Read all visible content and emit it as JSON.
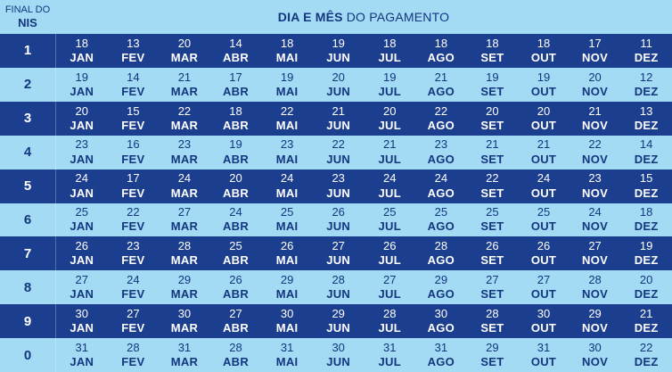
{
  "header": {
    "nis_label_line1": "FINAL DO",
    "nis_label_line2": "NIS",
    "title_bold": "DIA E MÊS",
    "title_regular": " DO PAGAMENTO"
  },
  "colors": {
    "light_blue": "#A2DBF3",
    "dark_blue": "#1C3E8F",
    "text_on_light": "#14367F",
    "text_on_dark": "#FFFFFF"
  },
  "months": [
    "JAN",
    "FEV",
    "MAR",
    "ABR",
    "MAI",
    "JUN",
    "JUL",
    "AGO",
    "SET",
    "OUT",
    "NOV",
    "DEZ"
  ],
  "rows": [
    {
      "nis": "1",
      "days": [
        18,
        13,
        20,
        14,
        18,
        19,
        18,
        18,
        18,
        18,
        17,
        11
      ]
    },
    {
      "nis": "2",
      "days": [
        19,
        14,
        21,
        17,
        19,
        20,
        19,
        21,
        19,
        19,
        20,
        12
      ]
    },
    {
      "nis": "3",
      "days": [
        20,
        15,
        22,
        18,
        22,
        21,
        20,
        22,
        20,
        20,
        21,
        13
      ]
    },
    {
      "nis": "4",
      "days": [
        23,
        16,
        23,
        19,
        23,
        22,
        21,
        23,
        21,
        21,
        22,
        14
      ]
    },
    {
      "nis": "5",
      "days": [
        24,
        17,
        24,
        20,
        24,
        23,
        24,
        24,
        22,
        24,
        23,
        15
      ]
    },
    {
      "nis": "6",
      "days": [
        25,
        22,
        27,
        24,
        25,
        26,
        25,
        25,
        25,
        25,
        24,
        18
      ]
    },
    {
      "nis": "7",
      "days": [
        26,
        23,
        28,
        25,
        26,
        27,
        26,
        28,
        26,
        26,
        27,
        19
      ]
    },
    {
      "nis": "8",
      "days": [
        27,
        24,
        29,
        26,
        29,
        28,
        27,
        29,
        27,
        27,
        28,
        20
      ]
    },
    {
      "nis": "9",
      "days": [
        30,
        27,
        30,
        27,
        30,
        29,
        28,
        30,
        28,
        30,
        29,
        21
      ]
    },
    {
      "nis": "0",
      "days": [
        31,
        28,
        31,
        28,
        31,
        30,
        31,
        31,
        29,
        31,
        30,
        22
      ]
    }
  ],
  "chart_data": {
    "type": "table",
    "title": "DIA E MÊS DO PAGAMENTO",
    "columns": [
      "FINAL DO NIS",
      "JAN",
      "FEV",
      "MAR",
      "ABR",
      "MAI",
      "JUN",
      "JUL",
      "AGO",
      "SET",
      "OUT",
      "NOV",
      "DEZ"
    ],
    "rows": [
      [
        "1",
        18,
        13,
        20,
        14,
        18,
        19,
        18,
        18,
        18,
        18,
        17,
        11
      ],
      [
        "2",
        19,
        14,
        21,
        17,
        19,
        20,
        19,
        21,
        19,
        19,
        20,
        12
      ],
      [
        "3",
        20,
        15,
        22,
        18,
        22,
        21,
        20,
        22,
        20,
        20,
        21,
        13
      ],
      [
        "4",
        23,
        16,
        23,
        19,
        23,
        22,
        21,
        23,
        21,
        21,
        22,
        14
      ],
      [
        "5",
        24,
        17,
        24,
        20,
        24,
        23,
        24,
        24,
        22,
        24,
        23,
        15
      ],
      [
        "6",
        25,
        22,
        27,
        24,
        25,
        26,
        25,
        25,
        25,
        25,
        24,
        18
      ],
      [
        "7",
        26,
        23,
        28,
        25,
        26,
        27,
        26,
        28,
        26,
        26,
        27,
        19
      ],
      [
        "8",
        27,
        24,
        29,
        26,
        29,
        28,
        27,
        29,
        27,
        27,
        28,
        20
      ],
      [
        "9",
        30,
        27,
        30,
        27,
        30,
        29,
        28,
        30,
        28,
        30,
        29,
        21
      ],
      [
        "0",
        31,
        28,
        31,
        28,
        31,
        30,
        31,
        31,
        29,
        31,
        30,
        22
      ]
    ],
    "layout_hints": {
      "row_style": "alternating dark-navy / light-blue starting dark",
      "cell_format": "day number above bold month abbreviation"
    }
  }
}
